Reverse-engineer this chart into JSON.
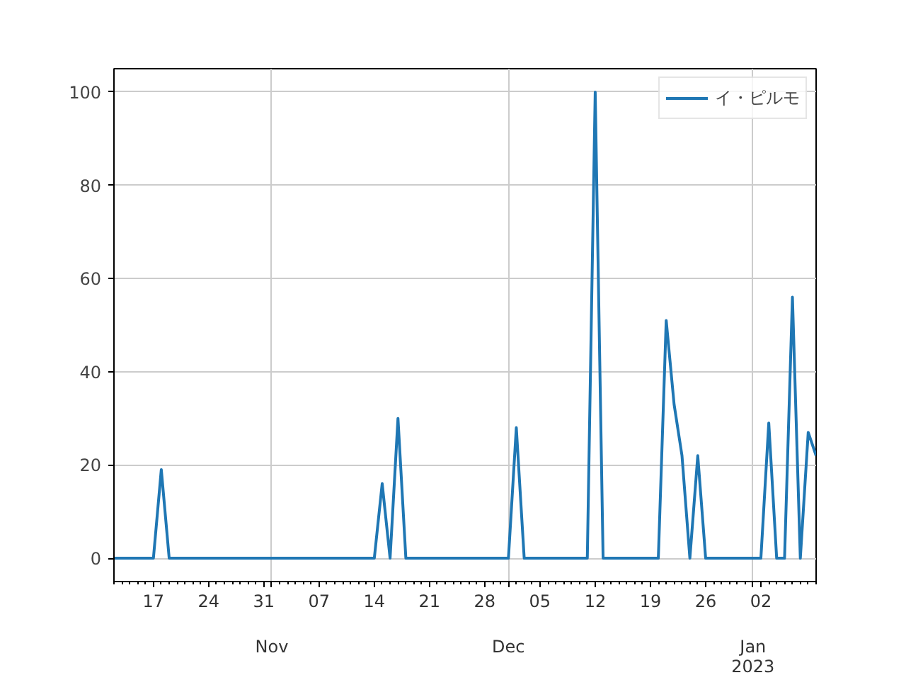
{
  "chart_data": {
    "type": "line",
    "x": [
      "2022-10-12",
      "2022-10-13",
      "2022-10-14",
      "2022-10-15",
      "2022-10-16",
      "2022-10-17",
      "2022-10-18",
      "2022-10-19",
      "2022-10-20",
      "2022-10-21",
      "2022-10-22",
      "2022-10-23",
      "2022-10-24",
      "2022-10-25",
      "2022-10-26",
      "2022-10-27",
      "2022-10-28",
      "2022-10-29",
      "2022-10-30",
      "2022-10-31",
      "2022-11-01",
      "2022-11-02",
      "2022-11-03",
      "2022-11-04",
      "2022-11-05",
      "2022-11-06",
      "2022-11-07",
      "2022-11-08",
      "2022-11-09",
      "2022-11-10",
      "2022-11-11",
      "2022-11-12",
      "2022-11-13",
      "2022-11-14",
      "2022-11-15",
      "2022-11-16",
      "2022-11-17",
      "2022-11-18",
      "2022-11-19",
      "2022-11-20",
      "2022-11-21",
      "2022-11-22",
      "2022-11-23",
      "2022-11-24",
      "2022-11-25",
      "2022-11-26",
      "2022-11-27",
      "2022-11-28",
      "2022-11-29",
      "2022-11-30",
      "2022-12-01",
      "2022-12-02",
      "2022-12-03",
      "2022-12-04",
      "2022-12-05",
      "2022-12-06",
      "2022-12-07",
      "2022-12-08",
      "2022-12-09",
      "2022-12-10",
      "2022-12-11",
      "2022-12-12",
      "2022-12-13",
      "2022-12-14",
      "2022-12-15",
      "2022-12-16",
      "2022-12-17",
      "2022-12-18",
      "2022-12-19",
      "2022-12-20",
      "2022-12-21",
      "2022-12-22",
      "2022-12-23",
      "2022-12-24",
      "2022-12-25",
      "2022-12-26",
      "2022-12-27",
      "2022-12-28",
      "2022-12-29",
      "2022-12-30",
      "2022-12-31",
      "2023-01-01",
      "2023-01-02",
      "2023-01-03",
      "2023-01-04",
      "2023-01-05",
      "2023-01-06",
      "2023-01-07",
      "2023-01-08",
      "2023-01-09"
    ],
    "series": [
      {
        "name": "イ・ピルモ",
        "color": "#1f77b4",
        "values": [
          0,
          0,
          0,
          0,
          0,
          0,
          19,
          0,
          0,
          0,
          0,
          0,
          0,
          0,
          0,
          0,
          0,
          0,
          0,
          0,
          0,
          0,
          0,
          0,
          0,
          0,
          0,
          0,
          0,
          0,
          0,
          0,
          0,
          0,
          16,
          0,
          30,
          0,
          0,
          0,
          0,
          0,
          0,
          0,
          0,
          0,
          0,
          0,
          0,
          0,
          0,
          28,
          0,
          0,
          0,
          0,
          0,
          0,
          0,
          0,
          0,
          100,
          0,
          0,
          0,
          0,
          0,
          0,
          0,
          0,
          51,
          33,
          22,
          0,
          22,
          0,
          0,
          0,
          0,
          0,
          0,
          0,
          0,
          29,
          0,
          0,
          56,
          0,
          27,
          22
        ]
      }
    ],
    "xlim": [
      "2022-10-12",
      "2023-01-09"
    ],
    "xticks": [
      {
        "value": "2022-10-17",
        "label": "17"
      },
      {
        "value": "2022-10-24",
        "label": "24"
      },
      {
        "value": "2022-10-31",
        "label": "31"
      },
      {
        "value": "2022-11-01",
        "label": null
      },
      {
        "value": "2022-11-07",
        "label": "07"
      },
      {
        "value": "2022-11-14",
        "label": "14"
      },
      {
        "value": "2022-11-21",
        "label": "21"
      },
      {
        "value": "2022-11-28",
        "label": "28"
      },
      {
        "value": "2022-12-01",
        "label": null
      },
      {
        "value": "2022-12-05",
        "label": "05"
      },
      {
        "value": "2022-12-12",
        "label": "12"
      },
      {
        "value": "2022-12-19",
        "label": "19"
      },
      {
        "value": "2022-12-26",
        "label": "26"
      },
      {
        "value": "2023-01-01",
        "label": null
      },
      {
        "value": "2023-01-02",
        "label": "02"
      }
    ],
    "ylim": [
      -5,
      105
    ],
    "yticks": [
      0,
      20,
      40,
      60,
      80,
      100
    ],
    "annotations": [
      "Nov",
      "Dec",
      "Jan\n2023"
    ],
    "grid": true,
    "legend": "top right",
    "line_style": "solid",
    "marker": "none"
  }
}
